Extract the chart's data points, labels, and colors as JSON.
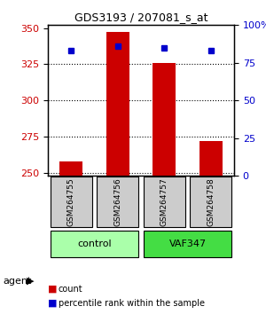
{
  "title": "GDS3193 / 207081_s_at",
  "samples": [
    "GSM264755",
    "GSM264756",
    "GSM264757",
    "GSM264758"
  ],
  "counts": [
    258,
    347,
    326,
    272
  ],
  "percentile_ranks": [
    83,
    86,
    85,
    83
  ],
  "ylim_left": [
    248,
    352
  ],
  "ylim_right": [
    0,
    100
  ],
  "yticks_left": [
    250,
    275,
    300,
    325,
    350
  ],
  "yticks_right": [
    0,
    25,
    50,
    75,
    100
  ],
  "ybase": 248,
  "groups": [
    {
      "label": "control",
      "indices": [
        0,
        1
      ],
      "color": "#aaffaa"
    },
    {
      "label": "VAF347",
      "indices": [
        2,
        3
      ],
      "color": "#44dd44"
    }
  ],
  "bar_color": "#cc0000",
  "dot_color": "#0000cc",
  "bar_width": 0.5,
  "grid_color": "#000000",
  "bg_color": "#ffffff",
  "sample_bg_color": "#cccccc",
  "agent_label": "agent",
  "legend_count_label": "count",
  "legend_pct_label": "percentile rank within the sample"
}
